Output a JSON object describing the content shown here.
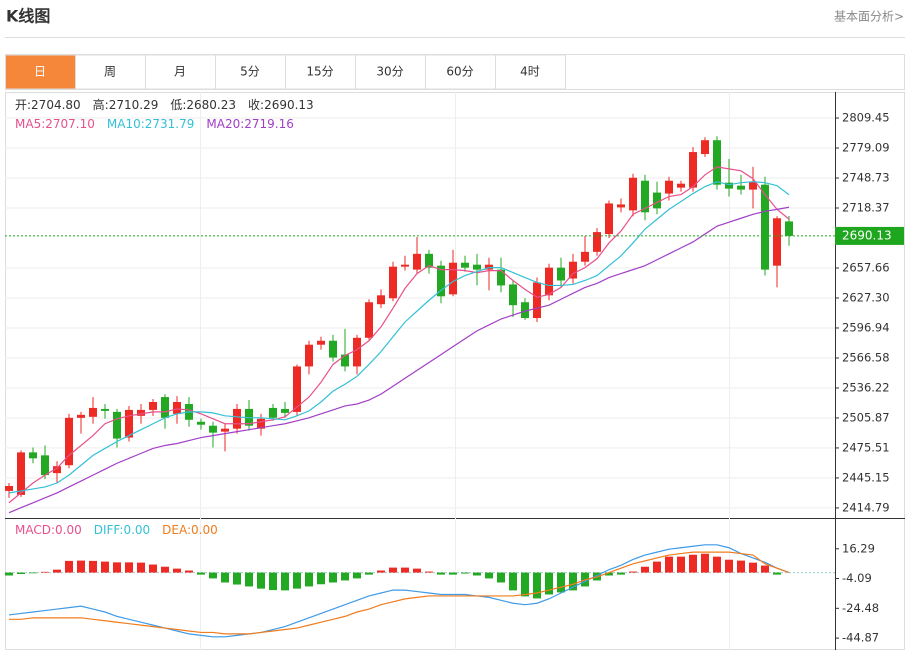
{
  "header": {
    "title": "K线图",
    "link": "基本面分析>"
  },
  "tabs": [
    "日",
    "周",
    "月",
    "5分",
    "15分",
    "30分",
    "60分",
    "4时"
  ],
  "active_tab": "日",
  "chart_data": [
    {
      "type": "candlestick",
      "info": [
        {
          "name": "开:",
          "current": "2704.80"
        },
        {
          "name": "高:",
          "current": "2710.29"
        },
        {
          "name": "低:",
          "current": "2680.23"
        },
        {
          "name": "收:",
          "current": "2690.13"
        }
      ],
      "up_color": "#ee2a24",
      "down_color": "#22a822",
      "open": [
        2432,
        2428,
        2471,
        2468,
        2450,
        2458,
        2506,
        2507,
        2515,
        2512,
        2486,
        2508,
        2514,
        2527,
        2510,
        2520,
        2502,
        2498,
        2492,
        2495,
        2515,
        2495,
        2516,
        2515,
        2512,
        2558,
        2580,
        2584,
        2570,
        2558,
        2587,
        2621,
        2627,
        2659,
        2656,
        2672,
        2660,
        2631,
        2663,
        2661,
        2656,
        2656,
        2641,
        2623,
        2607,
        2630,
        2658,
        2647,
        2664,
        2674,
        2692,
        2719,
        2716,
        2746,
        2734,
        2733,
        2739,
        2739,
        2773,
        2787,
        2744,
        2741,
        2737,
        2742,
        2660,
        2704.8
      ],
      "high": [
        2440,
        2473,
        2476,
        2478,
        2462,
        2510,
        2512,
        2527,
        2520,
        2515,
        2518,
        2520,
        2525,
        2530,
        2528,
        2527,
        2505,
        2502,
        2500,
        2520,
        2524,
        2510,
        2520,
        2522,
        2560,
        2584,
        2588,
        2590,
        2596,
        2590,
        2626,
        2636,
        2664,
        2670,
        2689,
        2676,
        2665,
        2676,
        2670,
        2672,
        2668,
        2668,
        2645,
        2627,
        2648,
        2662,
        2668,
        2672,
        2690,
        2698,
        2726,
        2728,
        2753,
        2752,
        2745,
        2750,
        2746,
        2780,
        2790,
        2791,
        2768,
        2752,
        2760,
        2750,
        2710,
        2710.29
      ],
      "low": [
        2425,
        2426,
        2460,
        2444,
        2440,
        2455,
        2490,
        2500,
        2505,
        2476,
        2482,
        2500,
        2508,
        2495,
        2500,
        2497,
        2494,
        2476,
        2472,
        2490,
        2493,
        2488,
        2503,
        2506,
        2508,
        2550,
        2575,
        2563,
        2553,
        2550,
        2585,
        2617,
        2624,
        2655,
        2652,
        2652,
        2622,
        2629,
        2654,
        2640,
        2635,
        2633,
        2608,
        2605,
        2603,
        2625,
        2638,
        2642,
        2660,
        2670,
        2688,
        2714,
        2710,
        2706,
        2712,
        2726,
        2735,
        2735,
        2770,
        2737,
        2730,
        2732,
        2718,
        2650,
        2638,
        2680.23
      ],
      "close": [
        2437,
        2471,
        2465,
        2448,
        2457,
        2506,
        2509,
        2516,
        2513,
        2485,
        2514,
        2514,
        2522,
        2506,
        2522,
        2504,
        2499,
        2491,
        2495,
        2515,
        2498,
        2505,
        2506,
        2511,
        2558,
        2580,
        2584,
        2567,
        2558,
        2587,
        2623,
        2630,
        2659,
        2661,
        2672,
        2658,
        2629,
        2663,
        2658,
        2656,
        2661,
        2640,
        2620,
        2607,
        2643,
        2658,
        2645,
        2664,
        2674,
        2694,
        2723,
        2722,
        2749,
        2714,
        2718,
        2746,
        2743,
        2775,
        2787,
        2742,
        2738,
        2737,
        2745,
        2656,
        2708,
        2690.13
      ],
      "series": [
        {
          "name": "MA5:",
          "current": "2707.10",
          "color": "#e8508c",
          "values": [
            2420,
            2430,
            2440,
            2448,
            2455,
            2468,
            2478,
            2488,
            2500,
            2505,
            2508,
            2510,
            2512,
            2512,
            2515,
            2514,
            2510,
            2505,
            2500,
            2500,
            2500,
            2502,
            2504,
            2507,
            2517,
            2527,
            2542,
            2560,
            2569,
            2575,
            2584,
            2598,
            2617,
            2637,
            2652,
            2660,
            2656,
            2656,
            2655,
            2653,
            2655,
            2655,
            2645,
            2636,
            2628,
            2631,
            2638,
            2652,
            2658,
            2667,
            2683,
            2695,
            2712,
            2718,
            2724,
            2730,
            2732,
            2740,
            2752,
            2760,
            2758,
            2756,
            2748,
            2732,
            2717,
            2707.1
          ]
        },
        {
          "name": "MA10:",
          "current": "2731.79",
          "color": "#33c0d6",
          "values": [
            2430,
            2432,
            2434,
            2436,
            2440,
            2448,
            2458,
            2468,
            2475,
            2482,
            2488,
            2494,
            2500,
            2506,
            2510,
            2512,
            2512,
            2511,
            2508,
            2507,
            2506,
            2506,
            2505,
            2504,
            2508,
            2513,
            2522,
            2533,
            2540,
            2548,
            2560,
            2573,
            2588,
            2603,
            2614,
            2625,
            2635,
            2644,
            2650,
            2654,
            2658,
            2658,
            2653,
            2648,
            2643,
            2640,
            2640,
            2641,
            2645,
            2650,
            2660,
            2670,
            2683,
            2697,
            2707,
            2717,
            2725,
            2733,
            2740,
            2745,
            2742,
            2744,
            2745,
            2744,
            2741,
            2731.79
          ]
        },
        {
          "name": "MA20:",
          "current": "2719.16",
          "color": "#a23fc6",
          "values": [
            2410,
            2415,
            2420,
            2425,
            2430,
            2436,
            2442,
            2448,
            2454,
            2460,
            2465,
            2470,
            2475,
            2478,
            2480,
            2483,
            2486,
            2488,
            2490,
            2492,
            2494,
            2496,
            2498,
            2500,
            2503,
            2506,
            2510,
            2514,
            2518,
            2520,
            2524,
            2530,
            2538,
            2546,
            2554,
            2562,
            2570,
            2578,
            2586,
            2594,
            2600,
            2606,
            2610,
            2614,
            2617,
            2620,
            2626,
            2632,
            2638,
            2642,
            2648,
            2652,
            2656,
            2660,
            2666,
            2672,
            2678,
            2684,
            2692,
            2700,
            2704,
            2708,
            2712,
            2715,
            2717,
            2719.16
          ]
        }
      ],
      "last_price": 2690.13,
      "last_price_color": "#1ea61e",
      "ylim": [
        2405.6,
        2835.8
      ],
      "yticks": [
        2809.45,
        2779.09,
        2748.73,
        2718.37,
        2657.66,
        {
          "value": 2627.3,
          "label": "2627.30"
        },
        2596.94,
        2566.58,
        2536.22,
        2505.87,
        2475.51,
        2445.15,
        2414.79
      ],
      "grid": true
    },
    {
      "type": "macd",
      "legend": [
        {
          "name": "MACD:",
          "current": "0.00",
          "color": "#e8508c"
        },
        {
          "name": "DIFF:",
          "current": "0.00",
          "color": "#33c0d6"
        },
        {
          "name": "DEA:",
          "current": "0.00",
          "color": "#f07c1e"
        }
      ],
      "up_color": "#ee2a24",
      "down_color": "#22a822",
      "macd": [
        -2,
        -1,
        -0.5,
        0.5,
        2,
        8,
        8.2,
        8,
        7.5,
        7,
        7,
        6.8,
        5.5,
        4,
        2.7,
        1.4,
        -1.4,
        -4,
        -6.8,
        -8.2,
        -9.5,
        -11,
        -12,
        -12.2,
        -11,
        -9.5,
        -8,
        -6.8,
        -5.4,
        -4,
        -1.4,
        1.4,
        3.4,
        3.4,
        2.7,
        0.7,
        -1.4,
        -1.4,
        -0.7,
        -2,
        -4,
        -6.8,
        -12.2,
        -16.3,
        -17.7,
        -15,
        -13.6,
        -12.2,
        -9.5,
        -5.4,
        -2,
        -1.4,
        0.7,
        4,
        7.5,
        10.9,
        10.9,
        12.2,
        12.9,
        10.9,
        8.8,
        8.2,
        6.8,
        4.8,
        -1.4,
        0
      ],
      "series": [
        {
          "name": "DIFF",
          "color": "#3f9ae8",
          "values": [
            -29,
            -28,
            -27,
            -26,
            -25,
            -24,
            -23,
            -25,
            -27,
            -30,
            -32,
            -34,
            -36,
            -38,
            -40,
            -42,
            -43,
            -44,
            -44,
            -43,
            -42,
            -41,
            -39,
            -37,
            -34,
            -31,
            -28,
            -25,
            -22,
            -19,
            -16,
            -14,
            -12,
            -12,
            -13,
            -14,
            -15,
            -15,
            -15,
            -16,
            -17,
            -19,
            -21,
            -22,
            -21,
            -18,
            -14,
            -10,
            -6,
            -2,
            2,
            5,
            9,
            12,
            14,
            16,
            17,
            18,
            19,
            19,
            17,
            13,
            10,
            7,
            3,
            0
          ]
        },
        {
          "name": "DEA",
          "color": "#f07c1e",
          "values": [
            -32,
            -32,
            -31,
            -31,
            -31,
            -31,
            -31,
            -32,
            -33,
            -34,
            -35,
            -36,
            -37,
            -38,
            -39,
            -40,
            -41,
            -41,
            -42,
            -42,
            -42,
            -41,
            -40,
            -39,
            -38,
            -36,
            -34,
            -32,
            -30,
            -27,
            -25,
            -22,
            -20,
            -18,
            -17,
            -16,
            -16,
            -16,
            -16,
            -16,
            -16,
            -16,
            -16,
            -15,
            -14,
            -12,
            -10,
            -8,
            -5,
            -3,
            0,
            3,
            6,
            8,
            10,
            12,
            13,
            14,
            14,
            14,
            14,
            13,
            12,
            6,
            3,
            0
          ]
        }
      ],
      "ylim": [
        -53.02,
        36.68
      ],
      "yticks": [
        16.29,
        -4.09,
        -24.48,
        -44.87
      ],
      "grid": true
    }
  ]
}
